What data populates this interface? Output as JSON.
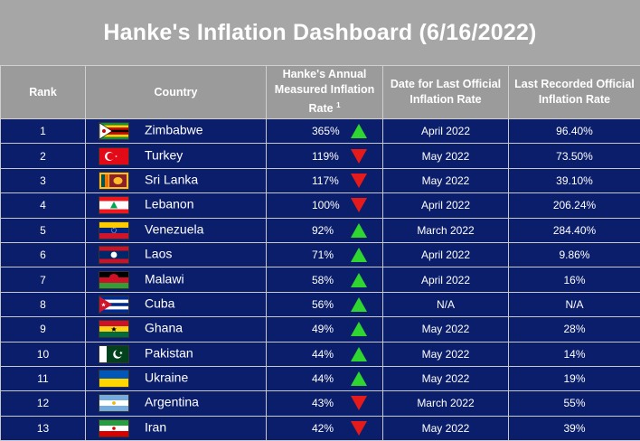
{
  "title": "Hanke's Inflation Dashboard (6/16/2022)",
  "headers": {
    "rank": "Rank",
    "country": "Country",
    "hanke": "Hanke's Annual Measured Inflation Rate",
    "hanke_sup": "1",
    "date": "Date for Last Official Inflation Rate",
    "official": "Last Recorded Official Inflation Rate"
  },
  "colors": {
    "up": "#2fd62f",
    "down": "#e51b1b",
    "row_bg": "#0b1e6b",
    "header_bg": "#9b9b9b"
  },
  "rows": [
    {
      "rank": "1",
      "country": "Zimbabwe",
      "flag": "zimbabwe-flag-icon",
      "rate": "365%",
      "trend": "up",
      "date": "April 2022",
      "official": "96.40%"
    },
    {
      "rank": "2",
      "country": "Turkey",
      "flag": "turkey-flag-icon",
      "rate": "119%",
      "trend": "down",
      "date": "May 2022",
      "official": "73.50%"
    },
    {
      "rank": "3",
      "country": "Sri Lanka",
      "flag": "sri-lanka-flag-icon",
      "rate": "117%",
      "trend": "down",
      "date": "May 2022",
      "official": "39.10%"
    },
    {
      "rank": "4",
      "country": "Lebanon",
      "flag": "lebanon-flag-icon",
      "rate": "100%",
      "trend": "down",
      "date": "April 2022",
      "official": "206.24%"
    },
    {
      "rank": "5",
      "country": "Venezuela",
      "flag": "venezuela-flag-icon",
      "rate": "92%",
      "trend": "up",
      "date": "March 2022",
      "official": "284.40%"
    },
    {
      "rank": "6",
      "country": "Laos",
      "flag": "laos-flag-icon",
      "rate": "71%",
      "trend": "up",
      "date": "April 2022",
      "official": "9.86%"
    },
    {
      "rank": "7",
      "country": "Malawi",
      "flag": "malawi-flag-icon",
      "rate": "58%",
      "trend": "up",
      "date": "April 2022",
      "official": "16%"
    },
    {
      "rank": "8",
      "country": "Cuba",
      "flag": "cuba-flag-icon",
      "rate": "56%",
      "trend": "up",
      "date": "N/A",
      "official": "N/A"
    },
    {
      "rank": "9",
      "country": "Ghana",
      "flag": "ghana-flag-icon",
      "rate": "49%",
      "trend": "up",
      "date": "May 2022",
      "official": "28%"
    },
    {
      "rank": "10",
      "country": "Pakistan",
      "flag": "pakistan-flag-icon",
      "rate": "44%",
      "trend": "up",
      "date": "May 2022",
      "official": "14%"
    },
    {
      "rank": "11",
      "country": "Ukraine",
      "flag": "ukraine-flag-icon",
      "rate": "44%",
      "trend": "up",
      "date": "May 2022",
      "official": "19%"
    },
    {
      "rank": "12",
      "country": "Argentina",
      "flag": "argentina-flag-icon",
      "rate": "43%",
      "trend": "down",
      "date": "March 2022",
      "official": "55%"
    },
    {
      "rank": "13",
      "country": "Iran",
      "flag": "iran-flag-icon",
      "rate": "42%",
      "trend": "down",
      "date": "May 2022",
      "official": "39%"
    }
  ]
}
